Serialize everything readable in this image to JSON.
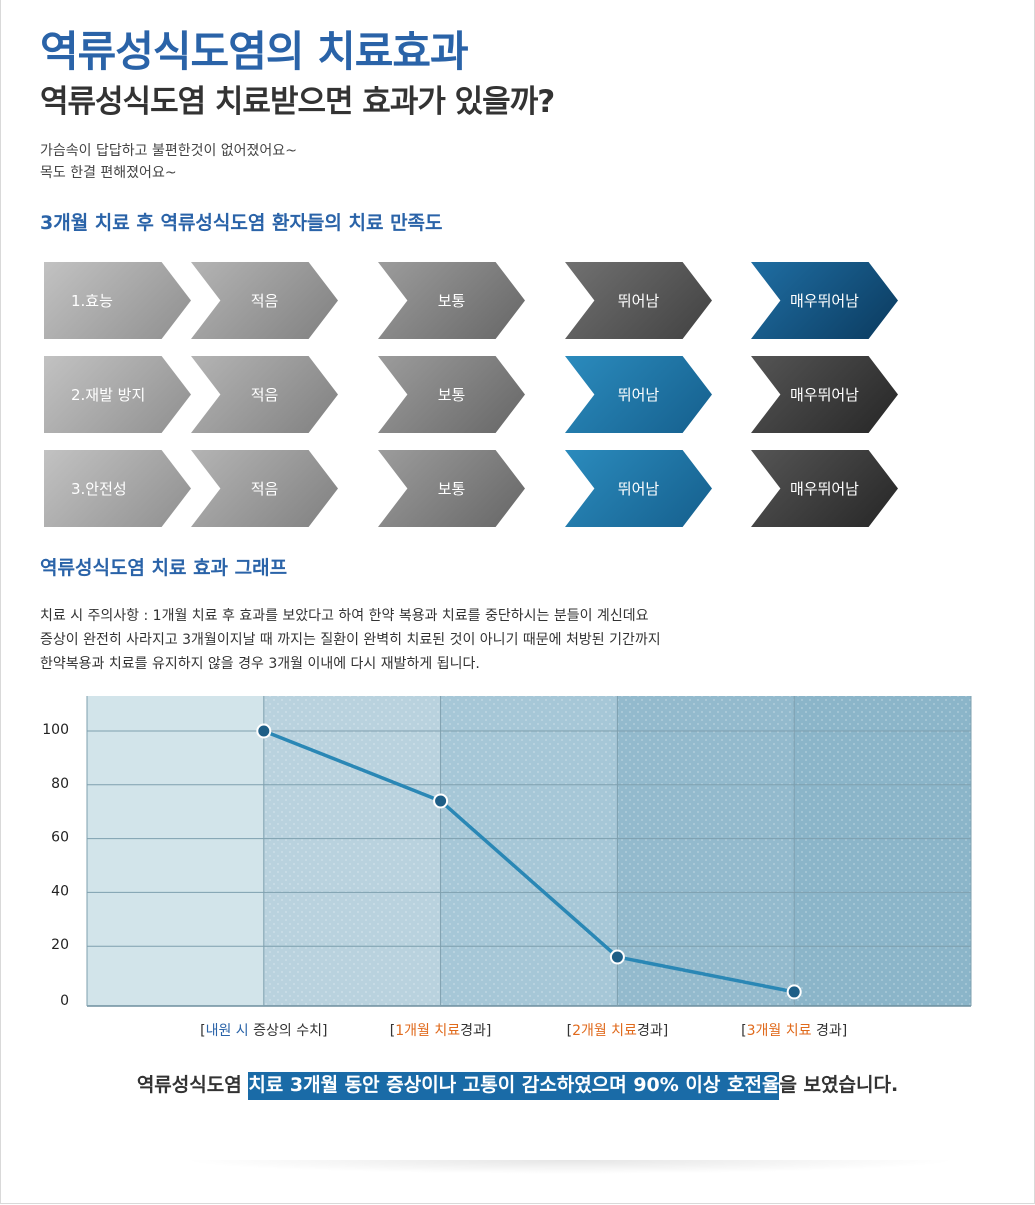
{
  "header": {
    "title": "역류성식도염의 치료효과",
    "subtitle": "역류성식도염 치료받으면 효과가 있을까?"
  },
  "testimonial": {
    "lines": [
      "가슴속이 답답하고 불편한것이 없어졌어요~",
      "목도 한결 편해졌어요~"
    ]
  },
  "satisfaction": {
    "heading": "3개월 치료 후 역류성식도염 환자들의 치료 만족도",
    "scale": [
      "적음",
      "보통",
      "뛰어남",
      "매우뛰어남"
    ],
    "rows": [
      {
        "label": "1.효능",
        "selected": "매우뛰어남"
      },
      {
        "label": "2.재발 방지",
        "selected": "뛰어남"
      },
      {
        "label": "3.안전성",
        "selected": "뛰어남"
      }
    ]
  },
  "graph_section": {
    "heading": "역류성식도염 치료 효과 그래프",
    "notice_lines": [
      "치료 시 주의사항 : 1개월 치료 후 효과를 보았다고 하여 한약 복용과 치료를 중단하시는 분들이 계신데요",
      "증상이 완전히 사라지고 3개월이지날 때 까지는 질환이 완벽히 치료된 것이 아니기 때문에 처방된 기간까지",
      "한약복용과 치료를 유지하지 않을 경우 3개월 이내에 다시 재발하게 됩니다."
    ]
  },
  "chart_data": {
    "type": "line",
    "categories": [
      "[내원 시 증상의 수치]",
      "[1개월 치료경과]",
      "[2개월 치료경과]",
      "[3개월 치료 경과]"
    ],
    "category_parts": [
      [
        {
          "t": "[",
          "c": ""
        },
        {
          "t": "내원 시",
          "c": "blue"
        },
        {
          "t": " 증상의 수치]",
          "c": ""
        }
      ],
      [
        {
          "t": "[",
          "c": ""
        },
        {
          "t": "1개월 치료",
          "c": "orange"
        },
        {
          "t": "경과]",
          "c": ""
        }
      ],
      [
        {
          "t": "[",
          "c": ""
        },
        {
          "t": "2개월 치료",
          "c": "orange"
        },
        {
          "t": "경과]",
          "c": ""
        }
      ],
      [
        {
          "t": "[",
          "c": ""
        },
        {
          "t": "3개월 치료",
          "c": "orange"
        },
        {
          "t": " 경과]",
          "c": ""
        }
      ]
    ],
    "values": [
      100,
      74,
      16,
      3
    ],
    "yticks": [
      0,
      20,
      40,
      60,
      80,
      100
    ],
    "ylim": [
      0,
      115
    ],
    "xlabel": "",
    "ylabel": "",
    "grid": true,
    "line_color": "#2a87b5",
    "point_color": "#1e5e86"
  },
  "conclusion": {
    "before": "역류성식도염 ",
    "highlight": "치료 3개월 동안 증상이나 고통이 감소하였으며 90% 이상 호전율",
    "after": "을 보였습니다."
  }
}
